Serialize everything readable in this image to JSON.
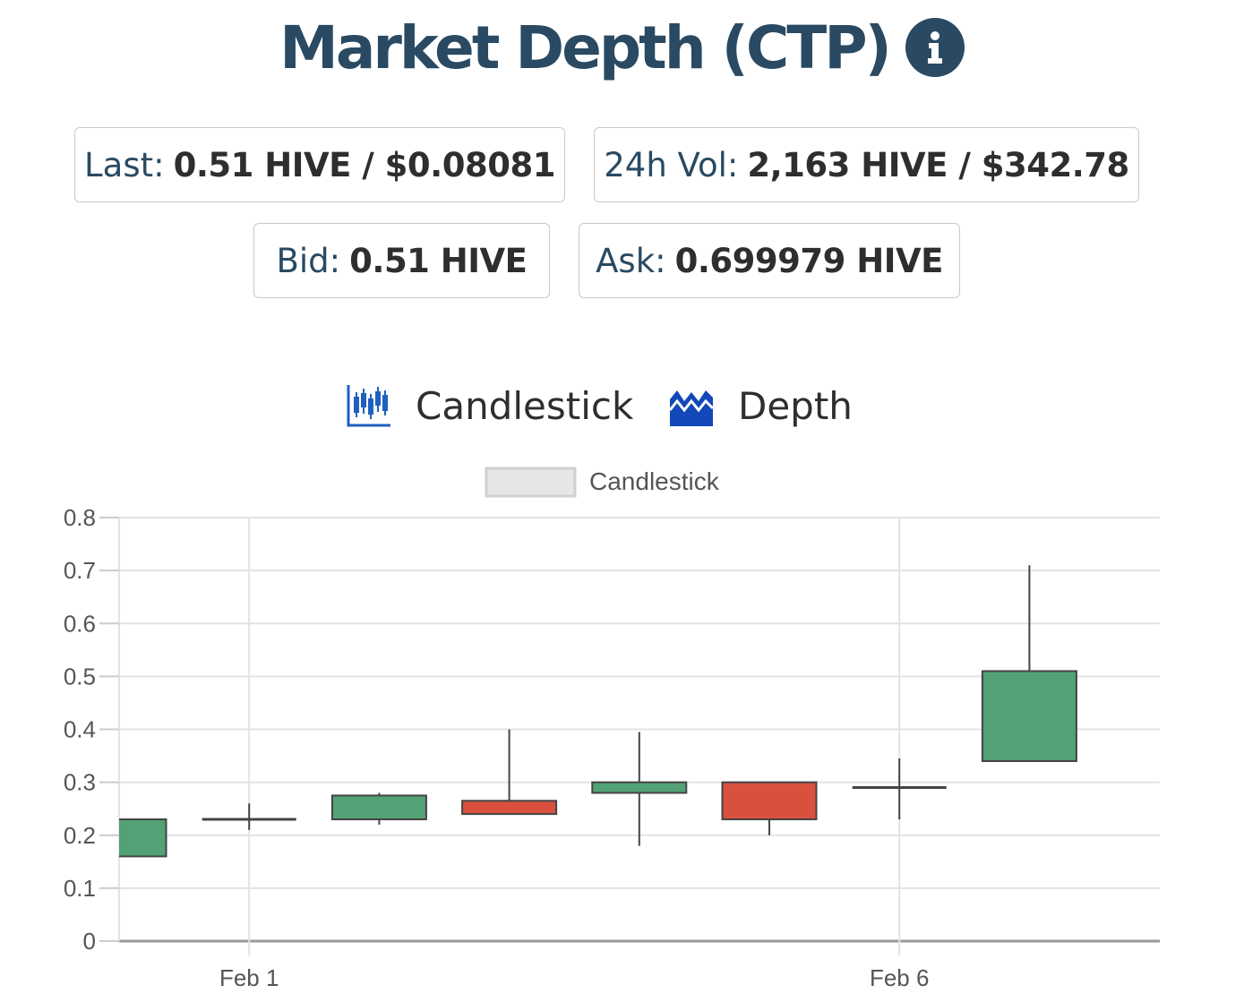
{
  "header": {
    "title": "Market Depth (CTP)",
    "info_icon": "info-icon"
  },
  "stats": {
    "last": {
      "label": "Last:",
      "value": "0.51 HIVE / $0.08081"
    },
    "volume": {
      "label": "24h Vol:",
      "value": "2,163 HIVE / $342.78"
    },
    "bid": {
      "label": "Bid:",
      "value": "0.51 HIVE"
    },
    "ask": {
      "label": "Ask:",
      "value": "0.699979 HIVE"
    }
  },
  "view_toggle": {
    "candlestick": {
      "label": "Candlestick",
      "icon": "candlestick-chart-icon"
    },
    "depth": {
      "label": "Depth",
      "icon": "area-chart-icon"
    }
  },
  "colors": {
    "up": "#52a275",
    "down": "#d9503f",
    "title": "#294a62",
    "icon_blue": "#1f5fbf"
  },
  "chart_data": {
    "type": "candlestick",
    "legend": {
      "label": "Candlestick",
      "placement": "top-center"
    },
    "ylim": [
      0,
      0.8
    ],
    "yticks": [
      "0",
      "0.1",
      "0.2",
      "0.3",
      "0.4",
      "0.5",
      "0.6",
      "0.7",
      "0.8"
    ],
    "xticks": [
      "Feb 1",
      "Feb 6"
    ],
    "grid": true,
    "candles": [
      {
        "date": "Jan 31",
        "open": 0.16,
        "high": 0.23,
        "low": 0.16,
        "close": 0.23
      },
      {
        "date": "Feb 1",
        "open": 0.23,
        "high": 0.26,
        "low": 0.21,
        "close": 0.23
      },
      {
        "date": "Feb 2",
        "open": 0.23,
        "high": 0.28,
        "low": 0.22,
        "close": 0.275
      },
      {
        "date": "Feb 3",
        "open": 0.265,
        "high": 0.4,
        "low": 0.24,
        "close": 0.24
      },
      {
        "date": "Feb 4",
        "open": 0.28,
        "high": 0.395,
        "low": 0.18,
        "close": 0.3
      },
      {
        "date": "Feb 5",
        "open": 0.3,
        "high": 0.3,
        "low": 0.2,
        "close": 0.23
      },
      {
        "date": "Feb 6",
        "open": 0.29,
        "high": 0.345,
        "low": 0.23,
        "close": 0.29
      },
      {
        "date": "Feb 7",
        "open": 0.34,
        "high": 0.71,
        "low": 0.34,
        "close": 0.51
      }
    ]
  }
}
